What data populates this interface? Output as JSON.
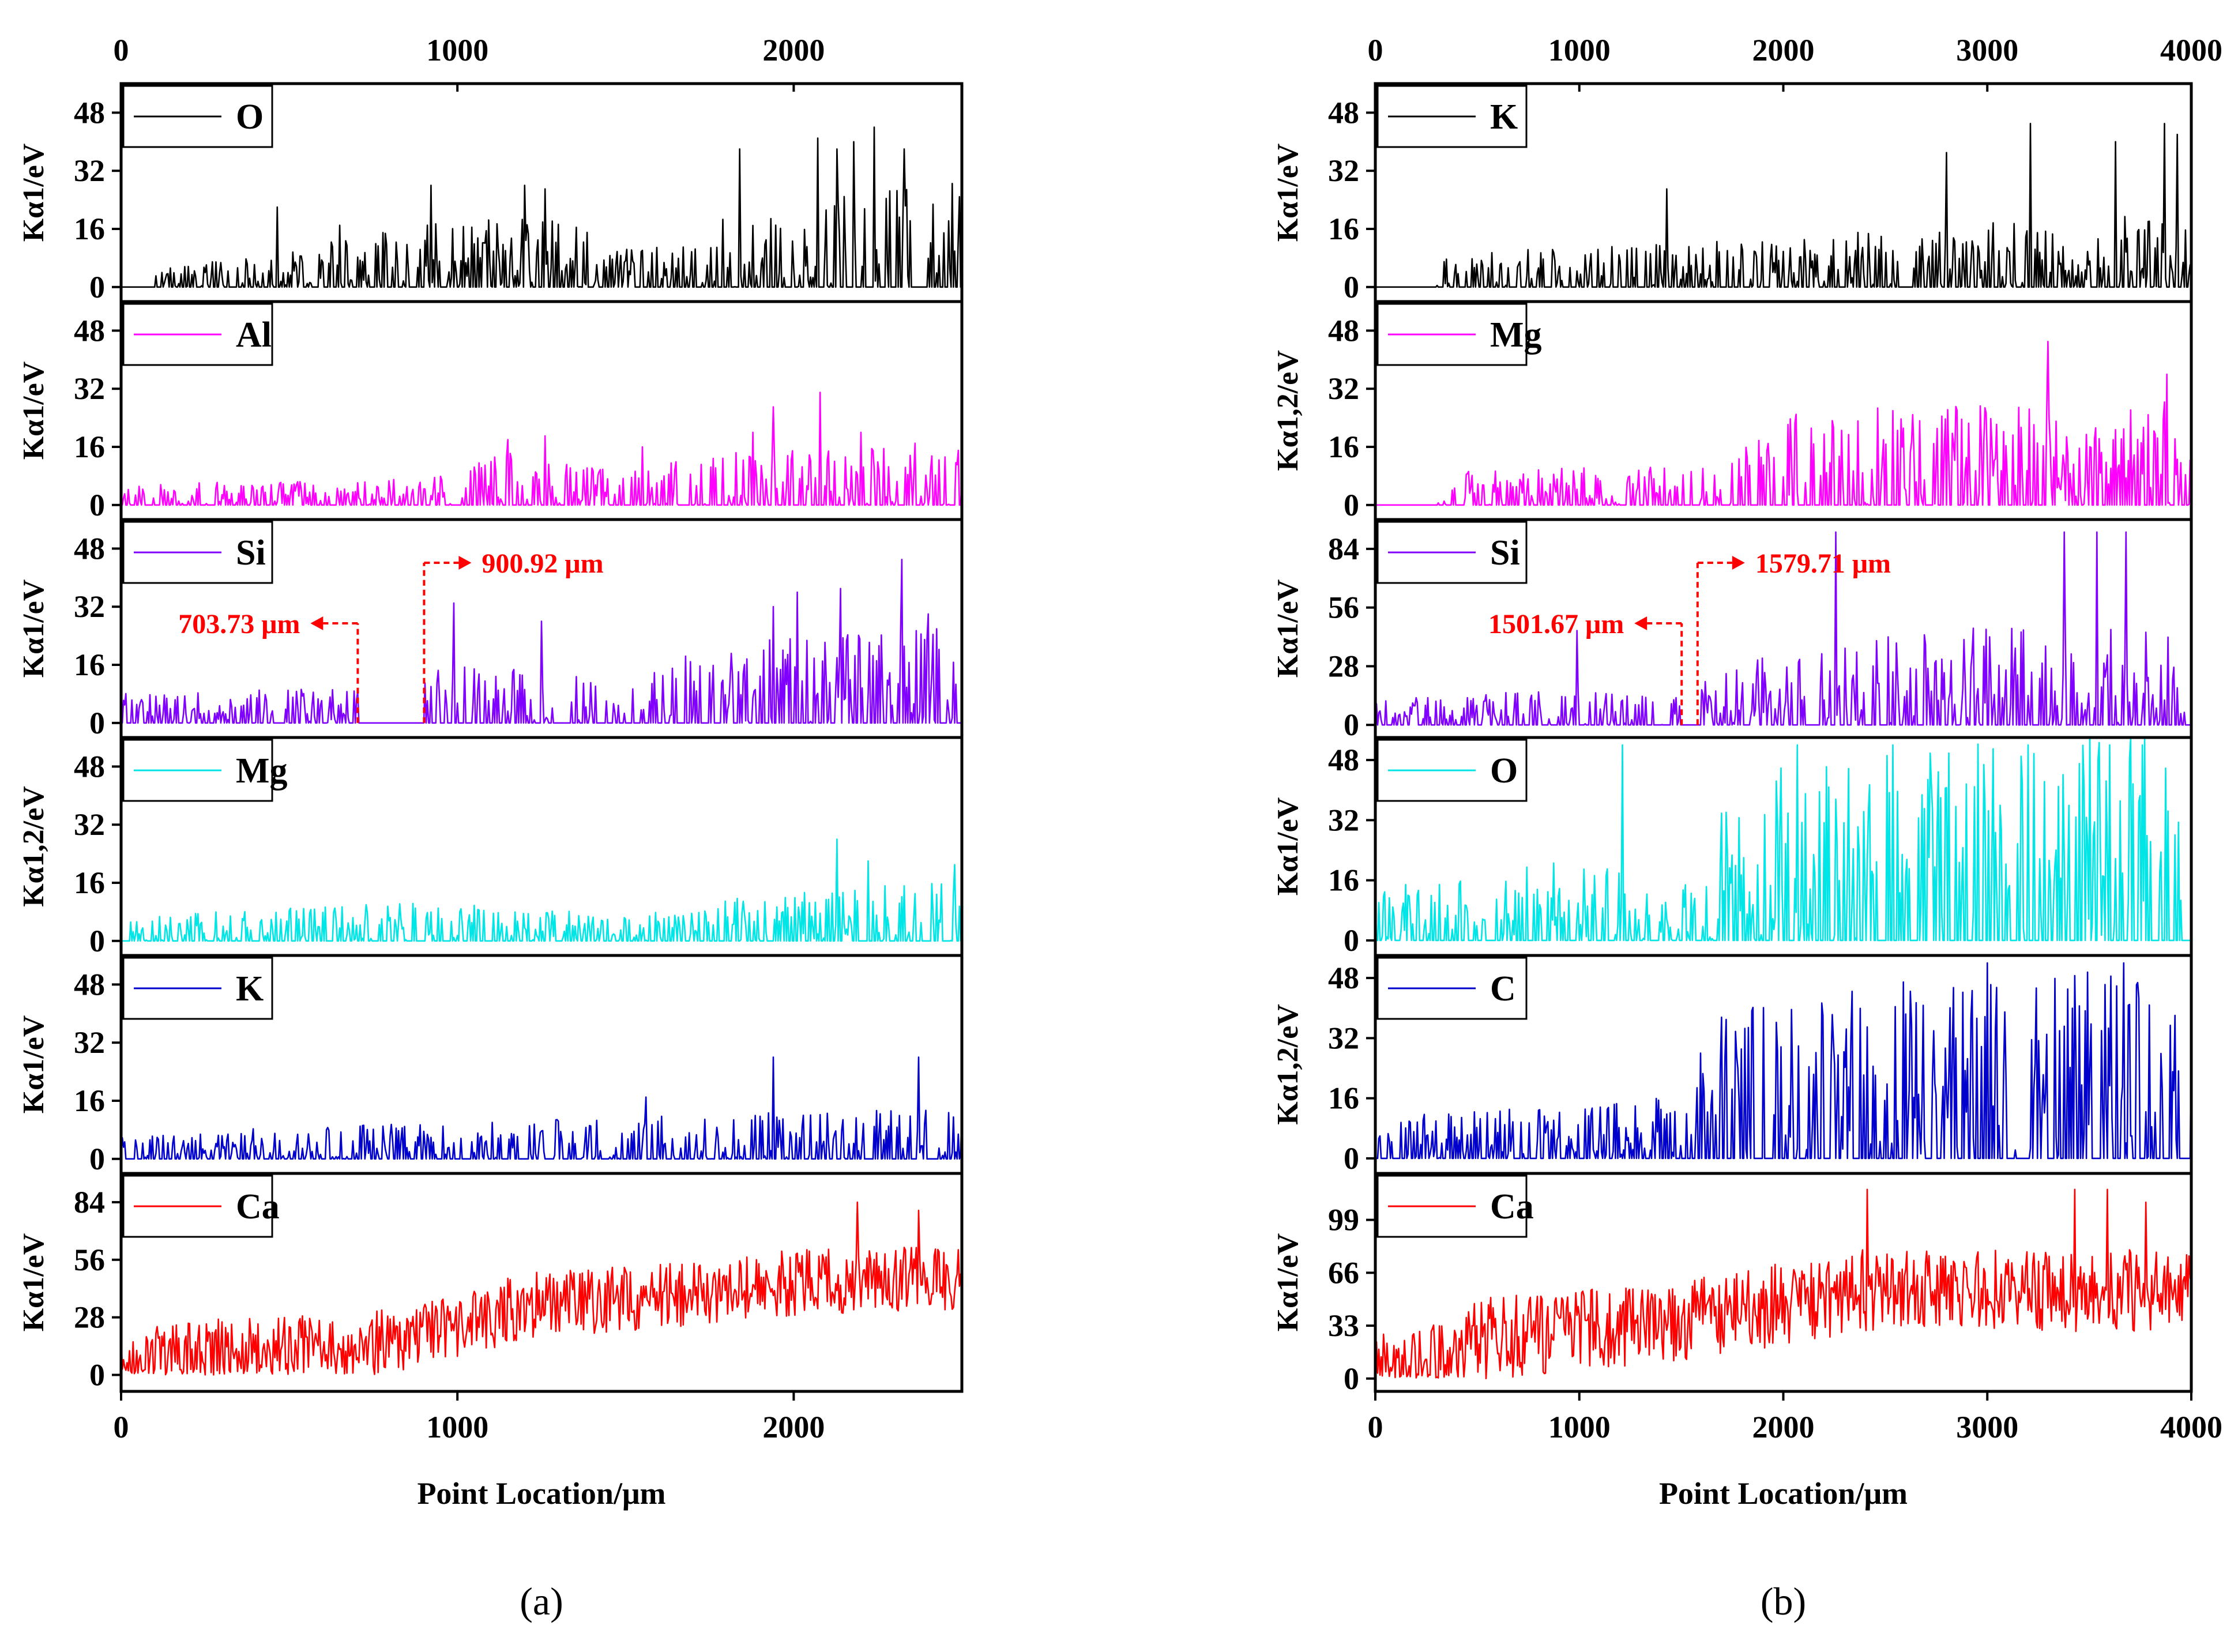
{
  "figure": {
    "panels": [
      {
        "id": "a",
        "caption": "(a)",
        "xlabel": "Point Location/μm",
        "xlim": [
          0,
          2500
        ],
        "xticks": [
          0,
          1000,
          2000
        ]
      },
      {
        "id": "b",
        "caption": "(b)",
        "xlabel": "Point Location/μm",
        "xlim": [
          0,
          4000
        ],
        "xticks": [
          0,
          1000,
          2000,
          3000,
          4000
        ]
      }
    ]
  },
  "chart_data": [
    {
      "panel": "a",
      "type": "line",
      "element": "O",
      "ylabel": "Kα1/eV",
      "color": "#000000",
      "ylim": [
        -4,
        56
      ],
      "yticks": [
        0,
        16,
        32,
        48
      ],
      "xlim": [
        0,
        2500
      ],
      "segments": [
        [
          80,
          2500
        ]
      ],
      "base": 0,
      "profile": [
        [
          0,
          4
        ],
        [
          500,
          8
        ],
        [
          600,
          10
        ],
        [
          900,
          16
        ],
        [
          1300,
          16
        ],
        [
          1500,
          10
        ],
        [
          1750,
          16
        ],
        [
          2000,
          20
        ],
        [
          2500,
          24
        ]
      ],
      "peaks": [
        [
          465,
          22
        ],
        [
          650,
          17
        ],
        [
          920,
          28
        ],
        [
          1200,
          28
        ],
        [
          1260,
          27
        ],
        [
          1840,
          38
        ],
        [
          2070,
          41
        ],
        [
          2130,
          38
        ],
        [
          2180,
          40
        ],
        [
          2240,
          44
        ],
        [
          2330,
          38
        ]
      ],
      "seed": 11
    },
    {
      "panel": "a",
      "type": "line",
      "element": "Al",
      "ylabel": "Kα1/eV",
      "color": "#ff00ff",
      "ylim": [
        -4,
        56
      ],
      "yticks": [
        0,
        16,
        32,
        48
      ],
      "xlim": [
        0,
        2500
      ],
      "segments": [
        [
          0,
          2500
        ]
      ],
      "base": 0,
      "profile": [
        [
          0,
          5
        ],
        [
          900,
          6
        ],
        [
          1150,
          12
        ],
        [
          1500,
          8
        ],
        [
          1800,
          12
        ],
        [
          2500,
          14
        ]
      ],
      "peaks": [
        [
          1150,
          18
        ],
        [
          1260,
          19
        ],
        [
          1550,
          16
        ],
        [
          1880,
          20
        ],
        [
          1940,
          27
        ],
        [
          2080,
          31
        ],
        [
          2200,
          20
        ],
        [
          2360,
          17
        ]
      ],
      "seed": 23
    },
    {
      "panel": "a",
      "type": "line",
      "element": "Si",
      "ylabel": "Kα1/eV",
      "color": "#8000ff",
      "ylim": [
        -4,
        56
      ],
      "yticks": [
        0,
        16,
        32,
        48
      ],
      "xlim": [
        0,
        2500
      ],
      "segments": [
        [
          0,
          703.73
        ],
        [
          900.92,
          2500
        ]
      ],
      "base": 0,
      "profile": [
        [
          0,
          7
        ],
        [
          700,
          8
        ],
        [
          901,
          14
        ],
        [
          1300,
          12
        ],
        [
          1500,
          9
        ],
        [
          1700,
          18
        ],
        [
          2500,
          22
        ]
      ],
      "peaks": [
        [
          990,
          33
        ],
        [
          1250,
          28
        ],
        [
          1940,
          32
        ],
        [
          2010,
          36
        ],
        [
          2140,
          37
        ],
        [
          2320,
          45
        ],
        [
          2400,
          30
        ]
      ],
      "seed": 37,
      "annotations": [
        {
          "text": "703.73 μm",
          "x": 703.73,
          "direction": "left"
        },
        {
          "text": "900.92 μm",
          "x": 900.92,
          "direction": "right"
        }
      ]
    },
    {
      "panel": "a",
      "type": "line",
      "element": "Mg",
      "ylabel": "Kα1,2/eV",
      "color": "#00e5e5",
      "ylim": [
        -4,
        56
      ],
      "yticks": [
        0,
        16,
        32,
        48
      ],
      "xlim": [
        0,
        2500
      ],
      "segments": [
        [
          0,
          2500
        ]
      ],
      "base": 0,
      "profile": [
        [
          0,
          6
        ],
        [
          900,
          9
        ],
        [
          1500,
          6
        ],
        [
          1800,
          10
        ],
        [
          2500,
          14
        ]
      ],
      "peaks": [
        [
          2130,
          28
        ],
        [
          2220,
          22
        ],
        [
          2480,
          21
        ]
      ],
      "seed": 41
    },
    {
      "panel": "a",
      "type": "line",
      "element": "K",
      "ylabel": "Kα1/eV",
      "color": "#0000cc",
      "ylim": [
        -4,
        56
      ],
      "yticks": [
        0,
        16,
        32,
        48
      ],
      "xlim": [
        0,
        2500
      ],
      "segments": [
        [
          0,
          2500
        ]
      ],
      "base": 0,
      "profile": [
        [
          0,
          5
        ],
        [
          600,
          8
        ],
        [
          900,
          8
        ],
        [
          1500,
          10
        ],
        [
          2500,
          12
        ]
      ],
      "peaks": [
        [
          1560,
          17
        ],
        [
          1940,
          28
        ],
        [
          2370,
          28
        ]
      ],
      "seed": 53
    },
    {
      "panel": "a",
      "type": "line",
      "element": "Ca",
      "ylabel": "Kα1/eV",
      "color": "#ff0000",
      "ylim": [
        -8,
        98
      ],
      "yticks": [
        0,
        28,
        56,
        84
      ],
      "xlim": [
        0,
        2500
      ],
      "segments": [
        [
          0,
          2500
        ]
      ],
      "base": "continuous",
      "trend": [
        [
          0,
          5
        ],
        [
          300,
          12
        ],
        [
          700,
          14
        ],
        [
          1000,
          22
        ],
        [
          1200,
          34
        ],
        [
          1600,
          38
        ],
        [
          2000,
          45
        ],
        [
          2500,
          48
        ]
      ],
      "noise": 20,
      "peaks": [
        [
          2190,
          84
        ],
        [
          2370,
          80
        ]
      ],
      "seed": 67
    },
    {
      "panel": "b",
      "type": "line",
      "element": "K",
      "ylabel": "Kα1/eV",
      "color": "#000000",
      "ylim": [
        -4,
        56
      ],
      "yticks": [
        0,
        16,
        32,
        48
      ],
      "xlim": [
        0,
        4000
      ],
      "segments": [
        [
          0,
          4000
        ]
      ],
      "base": 0,
      "profile": [
        [
          0,
          0
        ],
        [
          300,
          0
        ],
        [
          350,
          8
        ],
        [
          1500,
          10
        ],
        [
          2800,
          14
        ],
        [
          4000,
          18
        ]
      ],
      "peaks": [
        [
          1430,
          27
        ],
        [
          2800,
          37
        ],
        [
          3210,
          45
        ],
        [
          3630,
          40
        ],
        [
          3870,
          45
        ],
        [
          3930,
          42
        ]
      ],
      "seed": 71
    },
    {
      "panel": "b",
      "type": "line",
      "element": "Mg",
      "ylabel": "Kα1,2/eV",
      "color": "#ff00ff",
      "ylim": [
        -4,
        56
      ],
      "yticks": [
        0,
        16,
        32,
        48
      ],
      "xlim": [
        0,
        4000
      ],
      "segments": [
        [
          0,
          4000
        ]
      ],
      "base": 0,
      "profile": [
        [
          0,
          0
        ],
        [
          300,
          0
        ],
        [
          350,
          8
        ],
        [
          1500,
          9
        ],
        [
          2100,
          22
        ],
        [
          4000,
          24
        ]
      ],
      "peaks": [
        [
          3300,
          45
        ],
        [
          3880,
          36
        ]
      ],
      "seed": 83
    },
    {
      "panel": "b",
      "type": "line",
      "element": "Si",
      "ylabel": "Kα1/eV",
      "color": "#8000ff",
      "ylim": [
        -6,
        98
      ],
      "yticks": [
        0,
        28,
        56,
        84
      ],
      "xlim": [
        0,
        4000
      ],
      "segments": [
        [
          0,
          1501.67
        ],
        [
          1579.71,
          4000
        ]
      ],
      "base": 0,
      "profile": [
        [
          0,
          10
        ],
        [
          900,
          14
        ],
        [
          1500,
          12
        ],
        [
          1580,
          18
        ],
        [
          2000,
          30
        ],
        [
          3000,
          40
        ],
        [
          4000,
          38
        ]
      ],
      "peaks": [
        [
          990,
          45
        ],
        [
          2260,
          92
        ],
        [
          3380,
          92
        ],
        [
          3540,
          92
        ],
        [
          3680,
          92
        ]
      ],
      "seed": 97,
      "annotations": [
        {
          "text": "1501.67 μm",
          "x": 1501.67,
          "direction": "left"
        },
        {
          "text": "1579.71 μm",
          "x": 1579.71,
          "direction": "right"
        }
      ]
    },
    {
      "panel": "b",
      "type": "line",
      "element": "O",
      "ylabel": "Kα1/eV",
      "color": "#00e5e5",
      "ylim": [
        -4,
        54
      ],
      "yticks": [
        0,
        16,
        32,
        48
      ],
      "xlim": [
        0,
        4000
      ],
      "segments": [
        [
          0,
          4000
        ]
      ],
      "base": 0,
      "profile": [
        [
          0,
          12
        ],
        [
          950,
          18
        ],
        [
          1500,
          12
        ],
        [
          1600,
          26
        ],
        [
          2000,
          40
        ],
        [
          4000,
          48
        ]
      ],
      "peaks": [
        [
          1210,
          52
        ],
        [
          2070,
          52
        ],
        [
          2540,
          52
        ],
        [
          3200,
          52
        ],
        [
          3600,
          52
        ]
      ],
      "seed": 101
    },
    {
      "panel": "b",
      "type": "line",
      "element": "C",
      "ylabel": "Kα1,2/eV",
      "color": "#0000cc",
      "ylim": [
        -4,
        54
      ],
      "yticks": [
        0,
        16,
        32,
        48
      ],
      "xlim": [
        0,
        4000
      ],
      "segments": [
        [
          0,
          4000
        ]
      ],
      "base": 0,
      "profile": [
        [
          0,
          10
        ],
        [
          1000,
          12
        ],
        [
          1550,
          14
        ],
        [
          1600,
          32
        ],
        [
          2500,
          40
        ],
        [
          4000,
          42
        ]
      ],
      "peaks": [
        [
          3000,
          52
        ],
        [
          3670,
          52
        ]
      ],
      "seed": 113
    },
    {
      "panel": "b",
      "type": "line",
      "element": "Ca",
      "ylabel": "Kα1/eV",
      "color": "#ff0000",
      "ylim": [
        -8,
        128
      ],
      "yticks": [
        0,
        33,
        66,
        99
      ],
      "xlim": [
        0,
        4000
      ],
      "segments": [
        [
          0,
          4000
        ]
      ],
      "base": "continuous",
      "trend": [
        [
          0,
          3
        ],
        [
          400,
          10
        ],
        [
          450,
          24
        ],
        [
          1000,
          30
        ],
        [
          1600,
          38
        ],
        [
          2400,
          55
        ],
        [
          4000,
          55
        ]
      ],
      "noise": 32,
      "peaks": [
        [
          2410,
          118
        ],
        [
          3430,
          118
        ],
        [
          3590,
          118
        ],
        [
          3780,
          110
        ]
      ],
      "seed": 127
    }
  ]
}
